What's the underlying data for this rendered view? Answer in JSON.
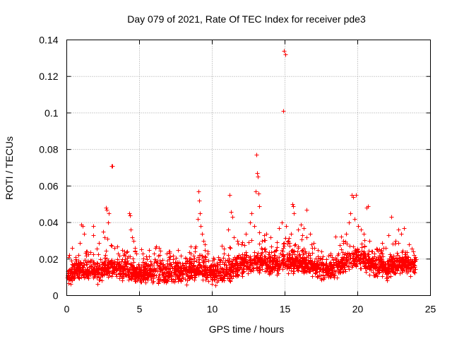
{
  "chart_data": {
    "type": "scatter",
    "title": "Day 079 of 2021, Rate Of TEC Index for receiver pde3",
    "xlabel": "GPS time / hours",
    "ylabel": "ROTI / TECUs",
    "xlim": [
      0,
      25
    ],
    "ylim": [
      0,
      0.14
    ],
    "x_ticks": [
      0,
      5,
      10,
      15,
      20,
      25
    ],
    "y_ticks": [
      0,
      0.02,
      0.04,
      0.06,
      0.08,
      0.1,
      0.12,
      0.14
    ],
    "x_tick_labels": [
      "0",
      "5",
      "10",
      "15",
      "20",
      "25"
    ],
    "y_tick_labels": [
      "0",
      "0.02",
      "0.04",
      "0.06",
      "0.08",
      "0.1",
      "0.12",
      "0.14"
    ],
    "grid": true,
    "marker": "+",
    "color": "#ff0000",
    "baseline_profile": [
      [
        0.0,
        0.012
      ],
      [
        1.0,
        0.014
      ],
      [
        2.0,
        0.013
      ],
      [
        3.0,
        0.016
      ],
      [
        4.0,
        0.014
      ],
      [
        5.0,
        0.012
      ],
      [
        6.0,
        0.013
      ],
      [
        7.0,
        0.012
      ],
      [
        8.0,
        0.013
      ],
      [
        9.0,
        0.015
      ],
      [
        10.0,
        0.012
      ],
      [
        11.0,
        0.013
      ],
      [
        12.0,
        0.017
      ],
      [
        13.0,
        0.019
      ],
      [
        14.0,
        0.017
      ],
      [
        15.0,
        0.019
      ],
      [
        16.0,
        0.018
      ],
      [
        17.0,
        0.016
      ],
      [
        18.0,
        0.014
      ],
      [
        19.0,
        0.018
      ],
      [
        20.0,
        0.021
      ],
      [
        21.0,
        0.017
      ],
      [
        22.0,
        0.015
      ],
      [
        23.0,
        0.018
      ],
      [
        24.0,
        0.016
      ]
    ],
    "points": [
      [
        0.3,
        0.019
      ],
      [
        0.6,
        0.021
      ],
      [
        0.9,
        0.029
      ],
      [
        1.0,
        0.039
      ],
      [
        1.1,
        0.038
      ],
      [
        1.2,
        0.034
      ],
      [
        1.4,
        0.024
      ],
      [
        1.8,
        0.033
      ],
      [
        1.8,
        0.038
      ],
      [
        2.2,
        0.029
      ],
      [
        2.5,
        0.035
      ],
      [
        2.6,
        0.032
      ],
      [
        2.7,
        0.048
      ],
      [
        2.75,
        0.047
      ],
      [
        2.8,
        0.031
      ],
      [
        2.85,
        0.04
      ],
      [
        2.9,
        0.045
      ],
      [
        3.1,
        0.071
      ],
      [
        3.15,
        0.071
      ],
      [
        3.3,
        0.026
      ],
      [
        3.6,
        0.022
      ],
      [
        3.8,
        0.025
      ],
      [
        4.0,
        0.022
      ],
      [
        4.3,
        0.045
      ],
      [
        4.35,
        0.044
      ],
      [
        4.4,
        0.036
      ],
      [
        4.5,
        0.032
      ],
      [
        4.6,
        0.03
      ],
      [
        4.7,
        0.026
      ],
      [
        5.0,
        0.015
      ],
      [
        5.5,
        0.02
      ],
      [
        6.0,
        0.023
      ],
      [
        6.1,
        0.026
      ],
      [
        6.5,
        0.018
      ],
      [
        7.0,
        0.021
      ],
      [
        7.3,
        0.022
      ],
      [
        7.5,
        0.018
      ],
      [
        8.0,
        0.017
      ],
      [
        8.5,
        0.023
      ],
      [
        8.8,
        0.024
      ],
      [
        9.0,
        0.042
      ],
      [
        9.05,
        0.057
      ],
      [
        9.1,
        0.052
      ],
      [
        9.15,
        0.045
      ],
      [
        9.2,
        0.038
      ],
      [
        9.3,
        0.034
      ],
      [
        9.4,
        0.03
      ],
      [
        9.5,
        0.028
      ],
      [
        9.7,
        0.024
      ],
      [
        10.0,
        0.019
      ],
      [
        10.3,
        0.018
      ],
      [
        10.8,
        0.023
      ],
      [
        11.1,
        0.036
      ],
      [
        11.2,
        0.055
      ],
      [
        11.3,
        0.046
      ],
      [
        11.4,
        0.043
      ],
      [
        11.5,
        0.032
      ],
      [
        11.7,
        0.03
      ],
      [
        12.0,
        0.028
      ],
      [
        12.3,
        0.034
      ],
      [
        12.6,
        0.04
      ],
      [
        12.7,
        0.045
      ],
      [
        12.9,
        0.038
      ],
      [
        13.0,
        0.057
      ],
      [
        13.05,
        0.077
      ],
      [
        13.1,
        0.067
      ],
      [
        13.15,
        0.065
      ],
      [
        13.2,
        0.056
      ],
      [
        13.25,
        0.049
      ],
      [
        13.4,
        0.03
      ],
      [
        13.7,
        0.034
      ],
      [
        14.0,
        0.032
      ],
      [
        14.4,
        0.025
      ],
      [
        14.6,
        0.037
      ],
      [
        14.8,
        0.04
      ],
      [
        14.9,
        0.101
      ],
      [
        14.95,
        0.134
      ],
      [
        15.0,
        0.132
      ],
      [
        15.05,
        0.038
      ],
      [
        15.2,
        0.03
      ],
      [
        15.4,
        0.034
      ],
      [
        15.5,
        0.05
      ],
      [
        15.55,
        0.049
      ],
      [
        15.6,
        0.045
      ],
      [
        15.9,
        0.036
      ],
      [
        16.1,
        0.039
      ],
      [
        16.2,
        0.033
      ],
      [
        16.3,
        0.037
      ],
      [
        16.5,
        0.032
      ],
      [
        16.5,
        0.047
      ],
      [
        16.7,
        0.034
      ],
      [
        16.8,
        0.028
      ],
      [
        17.0,
        0.026
      ],
      [
        17.5,
        0.024
      ],
      [
        18.0,
        0.022
      ],
      [
        18.5,
        0.02
      ],
      [
        19.0,
        0.03
      ],
      [
        19.2,
        0.034
      ],
      [
        19.4,
        0.04
      ],
      [
        19.5,
        0.045
      ],
      [
        19.6,
        0.055
      ],
      [
        19.7,
        0.054
      ],
      [
        19.8,
        0.042
      ],
      [
        19.9,
        0.055
      ],
      [
        20.0,
        0.038
      ],
      [
        20.2,
        0.036
      ],
      [
        20.4,
        0.034
      ],
      [
        20.6,
        0.048
      ],
      [
        20.7,
        0.049
      ],
      [
        20.8,
        0.03
      ],
      [
        21.0,
        0.024
      ],
      [
        21.5,
        0.022
      ],
      [
        21.9,
        0.026
      ],
      [
        22.1,
        0.033
      ],
      [
        22.3,
        0.043
      ],
      [
        22.6,
        0.03
      ],
      [
        22.8,
        0.036
      ],
      [
        23.0,
        0.034
      ],
      [
        23.2,
        0.037
      ],
      [
        23.5,
        0.028
      ],
      [
        23.8,
        0.024
      ],
      [
        24.0,
        0.02
      ]
    ]
  }
}
